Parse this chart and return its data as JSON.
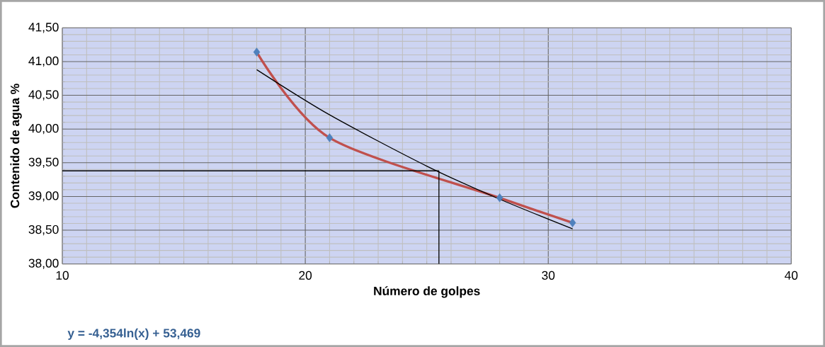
{
  "chart_data": {
    "type": "line",
    "xlabel": "Número de golpes",
    "ylabel": "Contenido de agua %",
    "annotations": [
      "y = -4,354ln(x) + 53,469"
    ],
    "xlim": [
      10,
      40
    ],
    "xticks": [
      10,
      20,
      30,
      40
    ],
    "ylim": [
      38,
      41.5
    ],
    "yticks": [
      {
        "value": 38,
        "label": "38,00"
      },
      {
        "value": 38.5,
        "label": "38,50"
      },
      {
        "value": 39,
        "label": "39,00"
      },
      {
        "value": 39.5,
        "label": "39,50"
      },
      {
        "value": 40,
        "label": "40,00"
      },
      {
        "value": 40.5,
        "label": "40,50"
      },
      {
        "value": 41,
        "label": "41,00"
      },
      {
        "value": 41.5,
        "label": "41,50"
      }
    ],
    "grid": true,
    "series": [
      {
        "type": "scatter",
        "color": "#4f81bd",
        "marker": "diamond",
        "x": [
          18,
          21,
          28,
          31
        ],
        "values": [
          41.14,
          39.87,
          38.98,
          38.61
        ]
      },
      {
        "color": "#c0504d",
        "marker": "none",
        "x": [
          18,
          21,
          28,
          31
        ],
        "values": [
          41.14,
          39.87,
          38.98,
          38.61
        ]
      },
      {
        "color": "#000000",
        "marker": "none",
        "x": [
          18,
          21,
          25,
          28,
          31
        ],
        "values": [
          40.88,
          40.21,
          39.45,
          38.96,
          38.52
        ]
      },
      {
        "color": "#000000",
        "marker": "none",
        "x": [
          10,
          25.5
        ],
        "values": [
          39.38,
          39.38
        ]
      },
      {
        "color": "#000000",
        "marker": "none",
        "x": [
          25.5,
          25.5
        ],
        "values": [
          39.38,
          38
        ]
      }
    ]
  }
}
